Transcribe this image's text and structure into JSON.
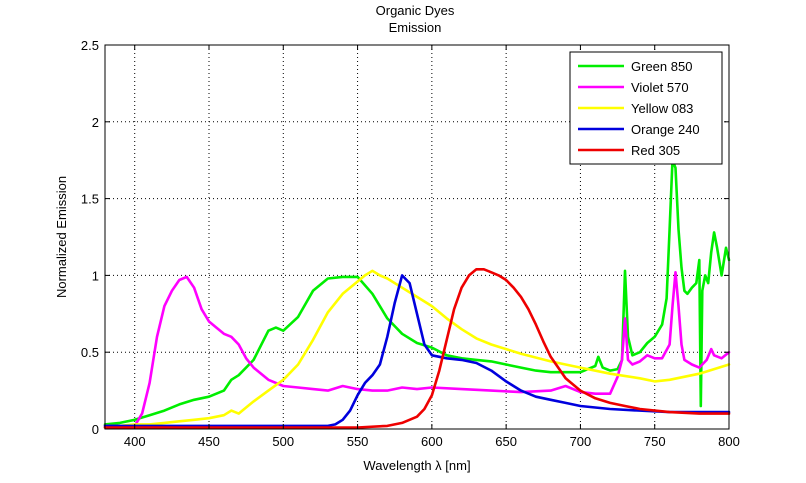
{
  "chart_data": {
    "type": "line",
    "title": "Organic Dyes",
    "subtitle": "Emission",
    "xlabel": "Wavelength λ [nm]",
    "ylabel": "Normalized Emission",
    "xlim": [
      380,
      800
    ],
    "ylim": [
      0,
      2.5
    ],
    "xticks": [
      "400",
      "450",
      "500",
      "550",
      "600",
      "650",
      "700",
      "750",
      "800"
    ],
    "yticks": [
      "0",
      "0.5",
      "1",
      "1.5",
      "2",
      "2.5"
    ],
    "grid": true,
    "legend_position": "top-right",
    "series": [
      {
        "name": "Green 850",
        "color": "#00ee00",
        "x": [
          380,
          390,
          400,
          410,
          420,
          430,
          440,
          450,
          460,
          465,
          470,
          480,
          490,
          495,
          500,
          510,
          520,
          530,
          540,
          550,
          560,
          570,
          580,
          590,
          600,
          610,
          620,
          630,
          640,
          650,
          660,
          670,
          680,
          690,
          700,
          710,
          712,
          715,
          720,
          725,
          728,
          730,
          732,
          735,
          740,
          745,
          750,
          755,
          758,
          760,
          762,
          764,
          766,
          768,
          770,
          772,
          775,
          778,
          780,
          781,
          782,
          784,
          786,
          788,
          790,
          792,
          795,
          798,
          800
        ],
        "y": [
          0.03,
          0.04,
          0.06,
          0.09,
          0.12,
          0.16,
          0.19,
          0.21,
          0.25,
          0.32,
          0.35,
          0.45,
          0.64,
          0.66,
          0.64,
          0.73,
          0.9,
          0.98,
          0.99,
          0.99,
          0.88,
          0.72,
          0.62,
          0.56,
          0.53,
          0.48,
          0.46,
          0.45,
          0.44,
          0.42,
          0.4,
          0.38,
          0.37,
          0.37,
          0.37,
          0.41,
          0.47,
          0.4,
          0.38,
          0.39,
          0.45,
          1.03,
          0.6,
          0.48,
          0.5,
          0.56,
          0.6,
          0.68,
          0.85,
          1.3,
          1.75,
          1.7,
          1.3,
          1.05,
          0.9,
          0.88,
          0.92,
          0.95,
          1.1,
          0.15,
          0.9,
          1.0,
          0.95,
          1.15,
          1.28,
          1.18,
          1.0,
          1.18,
          1.1
        ]
      },
      {
        "name": "Violet 570",
        "color": "#ff00ff",
        "x": [
          380,
          390,
          400,
          405,
          410,
          415,
          420,
          425,
          430,
          435,
          440,
          445,
          450,
          455,
          460,
          465,
          470,
          475,
          480,
          490,
          500,
          510,
          520,
          530,
          540,
          550,
          560,
          570,
          580,
          590,
          600,
          620,
          640,
          660,
          680,
          690,
          700,
          710,
          720,
          725,
          728,
          730,
          732,
          735,
          740,
          745,
          750,
          755,
          760,
          762,
          764,
          766,
          768,
          770,
          775,
          780,
          785,
          788,
          790,
          795,
          800
        ],
        "y": [
          0.02,
          0.02,
          0.02,
          0.1,
          0.3,
          0.6,
          0.8,
          0.9,
          0.97,
          0.99,
          0.92,
          0.78,
          0.7,
          0.66,
          0.62,
          0.6,
          0.55,
          0.46,
          0.4,
          0.32,
          0.28,
          0.27,
          0.26,
          0.25,
          0.28,
          0.26,
          0.25,
          0.25,
          0.27,
          0.26,
          0.27,
          0.26,
          0.25,
          0.24,
          0.25,
          0.28,
          0.24,
          0.23,
          0.23,
          0.34,
          0.45,
          0.72,
          0.45,
          0.42,
          0.44,
          0.48,
          0.46,
          0.46,
          0.55,
          0.8,
          1.02,
          0.8,
          0.55,
          0.45,
          0.42,
          0.4,
          0.45,
          0.52,
          0.48,
          0.46,
          0.5
        ]
      },
      {
        "name": "Yellow 083",
        "color": "#ffff00",
        "x": [
          380,
          390,
          400,
          410,
          420,
          430,
          440,
          450,
          460,
          465,
          470,
          475,
          480,
          490,
          500,
          510,
          520,
          530,
          540,
          550,
          555,
          560,
          565,
          570,
          580,
          590,
          600,
          610,
          620,
          630,
          640,
          650,
          660,
          680,
          700,
          720,
          740,
          750,
          760,
          780,
          800
        ],
        "y": [
          0.01,
          0.02,
          0.03,
          0.03,
          0.04,
          0.05,
          0.06,
          0.07,
          0.09,
          0.12,
          0.1,
          0.14,
          0.18,
          0.25,
          0.32,
          0.42,
          0.58,
          0.76,
          0.88,
          0.96,
          1.0,
          1.03,
          1.0,
          0.98,
          0.92,
          0.86,
          0.8,
          0.72,
          0.65,
          0.59,
          0.55,
          0.52,
          0.49,
          0.44,
          0.4,
          0.36,
          0.33,
          0.31,
          0.32,
          0.36,
          0.42
        ]
      },
      {
        "name": "Orange 240",
        "color": "#0000dd",
        "x": [
          380,
          400,
          450,
          500,
          520,
          530,
          535,
          540,
          545,
          550,
          555,
          560,
          565,
          570,
          575,
          580,
          585,
          590,
          595,
          600,
          605,
          610,
          620,
          630,
          640,
          650,
          660,
          670,
          680,
          690,
          700,
          720,
          740,
          760,
          780,
          800
        ],
        "y": [
          0.02,
          0.02,
          0.02,
          0.02,
          0.02,
          0.02,
          0.03,
          0.06,
          0.12,
          0.22,
          0.3,
          0.35,
          0.42,
          0.6,
          0.82,
          1.0,
          0.95,
          0.75,
          0.55,
          0.48,
          0.47,
          0.46,
          0.45,
          0.43,
          0.38,
          0.31,
          0.25,
          0.21,
          0.19,
          0.17,
          0.15,
          0.13,
          0.12,
          0.11,
          0.11,
          0.11
        ]
      },
      {
        "name": "Red 305",
        "color": "#ee0000",
        "x": [
          380,
          400,
          450,
          500,
          550,
          570,
          580,
          590,
          595,
          600,
          605,
          610,
          615,
          620,
          625,
          630,
          635,
          640,
          645,
          650,
          655,
          660,
          665,
          670,
          675,
          680,
          690,
          700,
          710,
          720,
          730,
          740,
          750,
          760,
          780,
          800
        ],
        "y": [
          0.01,
          0.01,
          0.01,
          0.01,
          0.01,
          0.02,
          0.04,
          0.08,
          0.13,
          0.22,
          0.38,
          0.58,
          0.78,
          0.92,
          1.0,
          1.04,
          1.04,
          1.02,
          1.0,
          0.97,
          0.92,
          0.86,
          0.78,
          0.68,
          0.57,
          0.47,
          0.33,
          0.25,
          0.2,
          0.17,
          0.15,
          0.13,
          0.12,
          0.11,
          0.1,
          0.1
        ]
      }
    ]
  }
}
